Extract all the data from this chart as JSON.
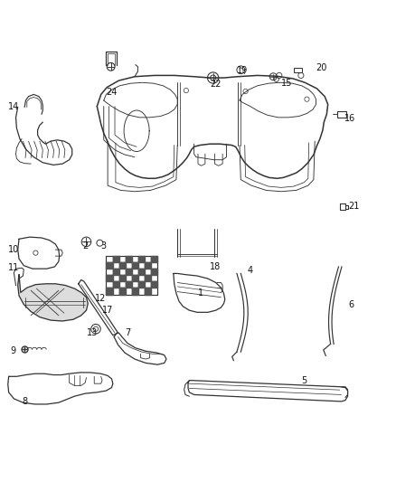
{
  "background_color": "#ffffff",
  "line_color": "#333333",
  "label_color": "#111111",
  "fig_width": 4.38,
  "fig_height": 5.33,
  "dpi": 100,
  "label_fontsize": 7.0,
  "lw_main": 1.0,
  "lw_thin": 0.55,
  "label_positions": {
    "1": [
      0.5,
      0.368,
      "left"
    ],
    "2": [
      0.208,
      0.488,
      "left"
    ],
    "3": [
      0.255,
      0.488,
      "left"
    ],
    "4": [
      0.625,
      0.425,
      "left"
    ],
    "5": [
      0.76,
      0.148,
      "left"
    ],
    "6": [
      0.88,
      0.338,
      "left"
    ],
    "7": [
      0.315,
      0.268,
      "left"
    ],
    "8": [
      0.055,
      0.095,
      "left"
    ],
    "9": [
      0.025,
      0.222,
      "left"
    ],
    "10": [
      0.02,
      0.478,
      "left"
    ],
    "11": [
      0.02,
      0.432,
      "left"
    ],
    "12": [
      0.24,
      0.355,
      "left"
    ],
    "13": [
      0.22,
      0.268,
      "left"
    ],
    "14": [
      0.02,
      0.838,
      "left"
    ],
    "15": [
      0.71,
      0.898,
      "left"
    ],
    "16": [
      0.87,
      0.81,
      "left"
    ],
    "17": [
      0.258,
      0.325,
      "left"
    ],
    "18": [
      0.53,
      0.435,
      "left"
    ],
    "19": [
      0.598,
      0.93,
      "left"
    ],
    "20": [
      0.798,
      0.938,
      "left"
    ],
    "21": [
      0.88,
      0.588,
      "left"
    ],
    "22": [
      0.53,
      0.895,
      "left"
    ],
    "24": [
      0.268,
      0.875,
      "left"
    ]
  }
}
